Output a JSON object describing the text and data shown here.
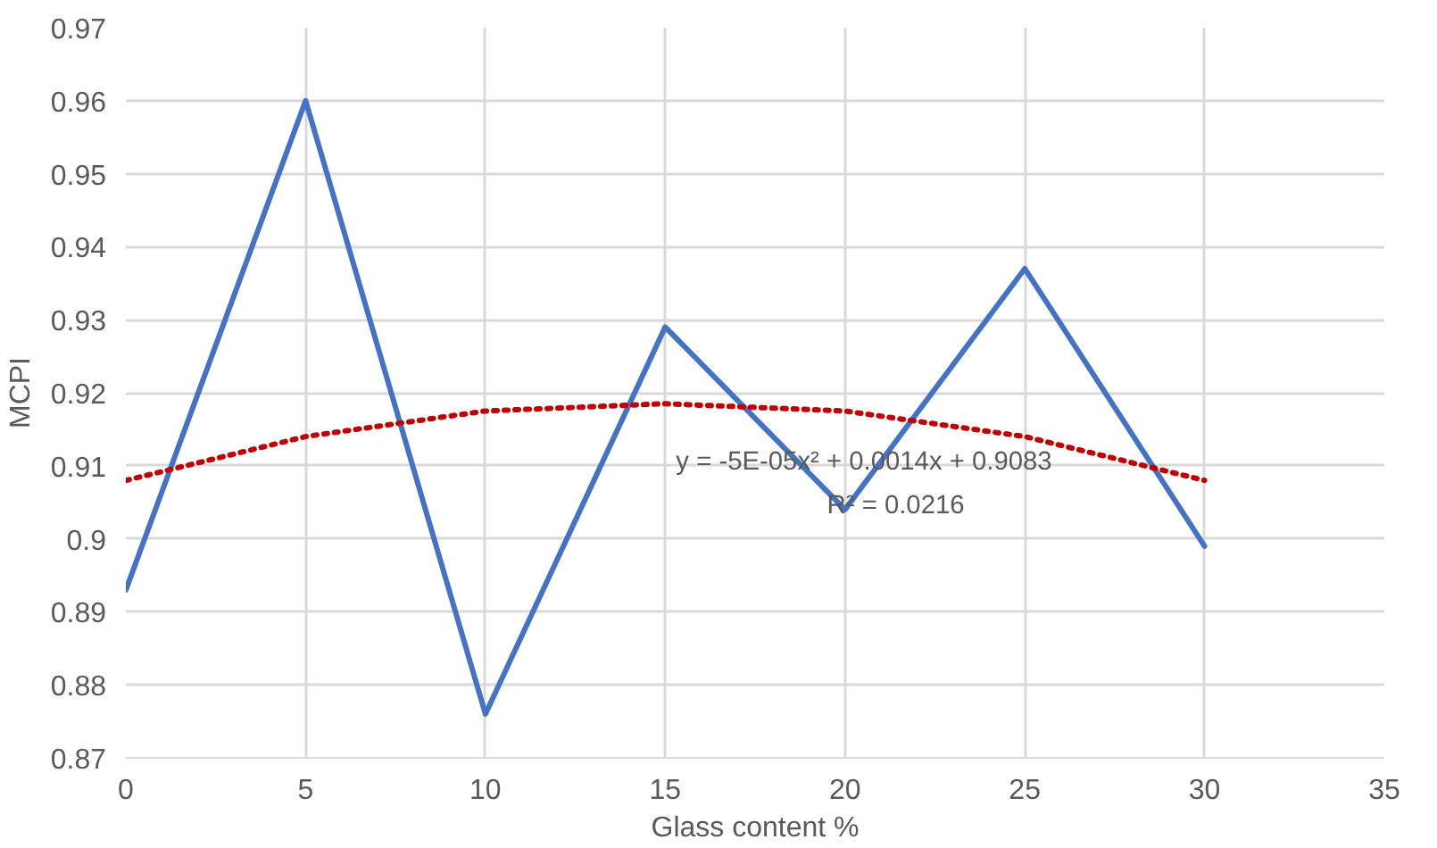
{
  "chart_data": {
    "type": "line",
    "xlabel": "Glass content %",
    "ylabel": "MCPI",
    "xlim": [
      0,
      35
    ],
    "xticks": [
      0,
      5,
      10,
      15,
      20,
      25,
      30,
      35
    ],
    "ylim": [
      0.87,
      0.97
    ],
    "yticks": [
      0.87,
      0.88,
      0.89,
      0.9,
      0.91,
      0.92,
      0.93,
      0.94,
      0.95,
      0.96,
      0.97
    ],
    "grid": true,
    "marker": "none",
    "series": [
      {
        "color": "#4472c4",
        "line_style": "solid",
        "x": [
          0,
          5,
          10,
          15,
          20,
          25,
          30
        ],
        "values": [
          0.893,
          0.96,
          0.876,
          0.929,
          0.904,
          0.937,
          0.899
        ]
      },
      {
        "color": "#c00000",
        "line_style": "dotted",
        "x": [
          0,
          5,
          10,
          15,
          20,
          25,
          30
        ],
        "values": [
          0.908,
          0.914,
          0.9175,
          0.9185,
          0.9175,
          0.914,
          0.908
        ]
      }
    ],
    "annotations": [
      "y = -5E-05x² + 0.0014x + 0.9083",
      "R² = 0.0216"
    ]
  }
}
